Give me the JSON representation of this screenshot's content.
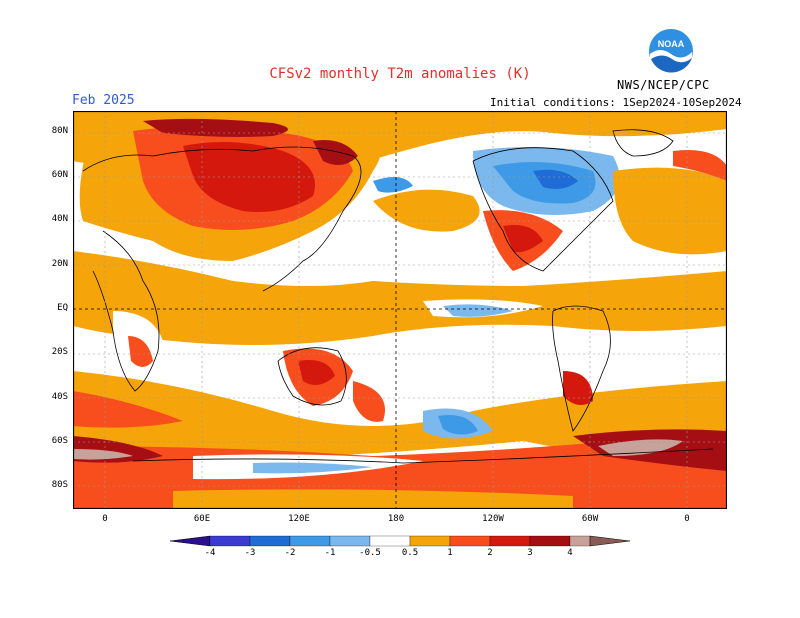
{
  "header": {
    "title": "CFSv2 monthly T2m anomalies (K)",
    "month": "Feb 2025",
    "initial_conditions": "Initial conditions: 1Sep2024-10Sep2024",
    "agency": "NWS/NCEP/CPC",
    "logo_text": "NOAA"
  },
  "map": {
    "lat_labels": [
      "80N",
      "60N",
      "40N",
      "20N",
      "EQ",
      "20S",
      "40S",
      "60S",
      "80S"
    ],
    "lon_labels": [
      "0",
      "60E",
      "120E",
      "180",
      "120W",
      "60W",
      "0"
    ]
  },
  "colorbar": {
    "labels": [
      "-4",
      "-3",
      "-2",
      "-1",
      "-0.5",
      "0.5",
      "1",
      "2",
      "3",
      "4"
    ],
    "colors": {
      "lt_m4": "#2a0f8f",
      "m4_m3": "#3b3bd1",
      "m3_m2": "#1f6cd6",
      "m2_m1": "#3e9ae6",
      "m1_m05": "#7ab8ee",
      "neutral": "#ffffff",
      "p05_1": "#f5a50a",
      "p1_2": "#f84e1d",
      "p2_3": "#d4180d",
      "p3_4": "#a50f14",
      "p4_5": "#c7a29b",
      "gt_5": "#8a5a55"
    }
  }
}
